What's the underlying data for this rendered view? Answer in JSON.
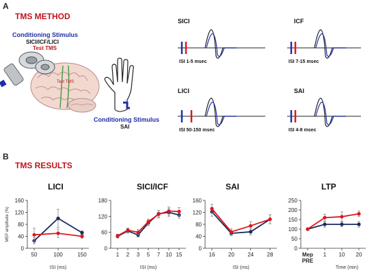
{
  "panel_a": {
    "letter": "A",
    "title": "TMS METHOD",
    "conditioning_label": "Conditioning Stimulus",
    "conditioning_sub": "SICI/ICF/LICI",
    "test_label": "Test TMS",
    "brain_label": "Test TMS",
    "hand_conditioning_label": "Conditioning Stimulus",
    "hand_conditioning_sub": "SAI",
    "waveforms": [
      {
        "title": "SICI",
        "isi": "ISI 1-5 msec"
      },
      {
        "title": "ICF",
        "isi": "ISI 7-15 msec"
      },
      {
        "title": "LICI",
        "isi": "ISI 50-150 msec"
      },
      {
        "title": "SAI",
        "isi": "ISI 4-8 msec"
      }
    ]
  },
  "panel_b": {
    "letter": "B",
    "title": "TMS RESULTS"
  },
  "colors": {
    "series_blue": "#1a2a5e",
    "series_red": "#e0161e",
    "accent_red": "#c0141c",
    "cond_blue": "#1f2fa8"
  },
  "chart_data": [
    {
      "type": "line",
      "title": "LICI",
      "xlabel": "ISI (ms)",
      "ylabel": "MEP amplitude (%)",
      "categories": [
        "50",
        "100",
        "150"
      ],
      "ylim": [
        0,
        160
      ],
      "yticks": [
        0,
        40,
        80,
        120,
        160
      ],
      "series": [
        {
          "color": "blue",
          "values": [
            25,
            100,
            52
          ],
          "err": [
            10,
            30,
            6
          ]
        },
        {
          "color": "red",
          "values": [
            45,
            50,
            40
          ],
          "err": [
            22,
            14,
            6
          ]
        }
      ]
    },
    {
      "type": "line",
      "title": "SICI/ICF",
      "xlabel": "ISI (ms)",
      "ylabel": "",
      "categories": [
        "1",
        "2",
        "3",
        "5",
        "7",
        "10",
        "15"
      ],
      "ylim": [
        0,
        180
      ],
      "yticks": [
        0,
        60,
        120,
        180
      ],
      "series": [
        {
          "color": "blue",
          "values": [
            45,
            65,
            50,
            95,
            130,
            135,
            125
          ],
          "err": [
            6,
            8,
            8,
            10,
            12,
            15,
            12
          ]
        },
        {
          "color": "red",
          "values": [
            47,
            68,
            60,
            100,
            128,
            140,
            138
          ],
          "err": [
            6,
            8,
            10,
            10,
            14,
            15,
            15
          ]
        }
      ]
    },
    {
      "type": "line",
      "title": "SAI",
      "xlabel": "ISI (ms)",
      "ylabel": "",
      "categories": [
        "16",
        "20",
        "24",
        "28"
      ],
      "ylim": [
        0,
        160
      ],
      "yticks": [
        0,
        40,
        80,
        120,
        160
      ],
      "series": [
        {
          "color": "blue",
          "values": [
            122,
            50,
            55,
            97
          ],
          "err": [
            15,
            8,
            10,
            15
          ]
        },
        {
          "color": "red",
          "values": [
            132,
            55,
            75,
            97
          ],
          "err": [
            15,
            10,
            14,
            15
          ]
        }
      ]
    },
    {
      "type": "line",
      "title": "LTP",
      "xlabel": "Time (min)",
      "ylabel": "",
      "categories": [
        "Mep PRE",
        "1",
        "10",
        "20"
      ],
      "ylim": [
        0,
        250
      ],
      "yticks": [
        0,
        50,
        100,
        150,
        200,
        250
      ],
      "series": [
        {
          "color": "blue",
          "values": [
            100,
            125,
            125,
            125
          ],
          "err": [
            3,
            15,
            12,
            15
          ]
        },
        {
          "color": "red",
          "values": [
            100,
            160,
            165,
            180
          ],
          "err": [
            3,
            18,
            25,
            15
          ]
        }
      ]
    }
  ]
}
